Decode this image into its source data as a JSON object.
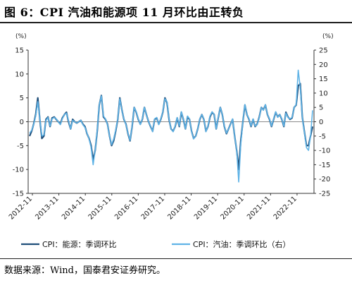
{
  "figure": {
    "title": "图 6：CPI 汽油和能源项 11 月环比由正转负",
    "source": "数据来源：Wind，国泰君安证券研究。"
  },
  "chart_data": {
    "type": "line",
    "left_axis": {
      "unit": "(%)",
      "ylim": [
        -15,
        15
      ],
      "ticks": [
        15,
        10,
        5,
        0,
        -5,
        -10,
        -15
      ]
    },
    "right_axis": {
      "unit": "(%)",
      "ylim": [
        -25,
        25
      ],
      "ticks": [
        25,
        20,
        15,
        10,
        5,
        0,
        -5,
        -10,
        -15,
        -20,
        -25
      ]
    },
    "x_ticks": [
      "2012-11",
      "2013-11",
      "2014-11",
      "2015-11",
      "2016-11",
      "2017-11",
      "2018-11",
      "2019-11",
      "2020-11",
      "2021-11",
      "2022-11"
    ],
    "colors": {
      "energy": "#1f4e79",
      "gasoline": "#5fb3e6"
    },
    "series": [
      {
        "name": "CPI：能源：季调环比",
        "axis": "left",
        "values": [
          -3.0,
          -2.0,
          -0.5,
          1.5,
          5.0,
          0.5,
          -3.5,
          -3.0,
          0.5,
          1.0,
          -1.0,
          0.8,
          1.0,
          0.5,
          0.0,
          -0.5,
          0.8,
          1.5,
          2.0,
          0.0,
          -1.5,
          0.5,
          0.0,
          -0.3,
          0.0,
          0.3,
          -0.5,
          -1.0,
          -2.5,
          -3.5,
          -5.0,
          -8.0,
          -6.0,
          -2.0,
          3.5,
          5.5,
          1.0,
          0.5,
          -0.5,
          -3.0,
          -5.0,
          -4.0,
          -2.0,
          0.5,
          5.0,
          2.5,
          0.5,
          -0.5,
          -2.5,
          -4.0,
          -1.0,
          3.0,
          2.0,
          0.5,
          -0.5,
          0.5,
          3.0,
          1.5,
          0.0,
          -1.0,
          -2.0,
          0.5,
          0.8,
          -0.5,
          0.5,
          2.0,
          5.0,
          4.0,
          0.5,
          -1.5,
          -2.0,
          -1.0,
          0.8,
          -1.0,
          2.0,
          0.5,
          -1.5,
          1.0,
          0.5,
          -2.0,
          -3.5,
          -3.0,
          -1.5,
          0.5,
          1.5,
          0.5,
          -2.0,
          -1.0,
          1.0,
          2.0,
          1.5,
          -1.5,
          0.8,
          3.0,
          1.5,
          -1.0,
          -2.5,
          -1.5,
          -0.5,
          0.5,
          -3.0,
          -6.0,
          -10.0,
          -4.0,
          0.0,
          3.5,
          1.5,
          0.5,
          -1.0,
          0.5,
          -1.0,
          -0.5,
          1.0,
          3.0,
          2.5,
          3.5,
          1.5,
          0.5,
          -1.0,
          0.5,
          2.0,
          1.0,
          1.5,
          0.5,
          -1.0,
          2.0,
          1.0,
          0.5,
          0.8,
          3.0,
          3.5,
          7.5,
          8.0,
          1.0,
          -2.0,
          -5.0,
          -5.0,
          -3.0,
          -1.0
        ]
      },
      {
        "name": "CPI：汽油：季调环比（右）",
        "axis": "right",
        "values": [
          -4.0,
          -3.0,
          -1.0,
          2.0,
          7.0,
          1.0,
          -5.0,
          -4.5,
          0.5,
          1.5,
          -1.5,
          1.0,
          1.5,
          1.0,
          0.0,
          -1.0,
          1.0,
          2.5,
          3.0,
          0.5,
          -2.5,
          0.5,
          0.0,
          -0.5,
          0.0,
          0.5,
          -1.0,
          -2.0,
          -4.0,
          -6.0,
          -9.0,
          -15.0,
          -10.0,
          -3.0,
          6.0,
          9.0,
          2.0,
          1.0,
          -1.0,
          -5.0,
          -8.0,
          -6.0,
          -3.0,
          1.0,
          8.0,
          4.0,
          1.0,
          -1.0,
          -4.0,
          -6.5,
          -1.5,
          5.0,
          3.5,
          1.0,
          -1.0,
          1.0,
          5.0,
          2.5,
          0.0,
          -1.5,
          -3.5,
          1.0,
          1.5,
          -1.0,
          1.0,
          3.5,
          8.0,
          7.0,
          1.0,
          -2.5,
          -3.5,
          -1.5,
          1.5,
          -1.5,
          3.5,
          1.0,
          -2.5,
          2.0,
          1.0,
          -3.5,
          -6.0,
          -5.0,
          -2.5,
          1.0,
          2.5,
          1.0,
          -3.5,
          -1.5,
          2.0,
          3.5,
          2.5,
          -2.5,
          1.5,
          5.0,
          2.5,
          -1.5,
          -4.0,
          -2.5,
          -1.0,
          1.0,
          -5.0,
          -10.0,
          -21.0,
          -8.0,
          0.0,
          6.0,
          2.5,
          1.0,
          -1.5,
          1.0,
          -1.5,
          -1.0,
          1.5,
          5.0,
          4.0,
          6.0,
          2.5,
          1.0,
          -1.5,
          1.0,
          3.5,
          1.5,
          2.5,
          1.0,
          -1.5,
          3.0,
          1.5,
          1.0,
          1.5,
          5.0,
          6.0,
          18.0,
          12.0,
          1.5,
          -3.5,
          -9.0,
          -10.0,
          -5.0,
          4.0
        ]
      }
    ]
  }
}
